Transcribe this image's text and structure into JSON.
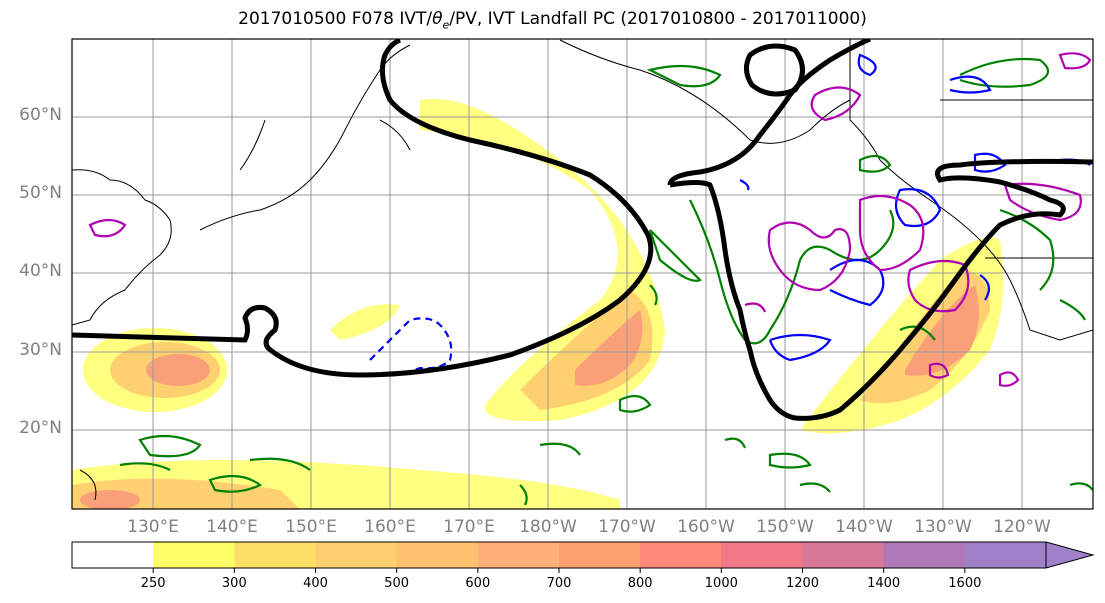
{
  "title_prefix": "2017010500 F078 IVT/",
  "title_theta": "θ",
  "title_theta_sub": "e",
  "title_suffix": "/PV, IVT Landfall PC (2017010800 - 2017011000)",
  "lat_labels": [
    "60°N",
    "50°N",
    "40°N",
    "30°N",
    "20°N"
  ],
  "lon_labels": [
    "130°E",
    "140°E",
    "150°E",
    "160°E",
    "170°E",
    "180°W",
    "170°W",
    "160°W",
    "150°W",
    "140°W",
    "130°W",
    "120°W"
  ],
  "colorbar": {
    "ticks": [
      "250",
      "300",
      "400",
      "500",
      "600",
      "700",
      "800",
      "1000",
      "1200",
      "1400",
      "1600"
    ],
    "colors": [
      "#ffffff",
      "#ffff66",
      "#ffe066",
      "#ffd070",
      "#ffc070",
      "#ffb078",
      "#ffa070",
      "#ff8878",
      "#f07888",
      "#d87898",
      "#b078b8",
      "#a080c8"
    ]
  },
  "contour_colors": {
    "pc_line": "#000000",
    "theta_e_positive": "#008000",
    "theta_e_negative": "#0000ff",
    "pv": "#b000b0"
  }
}
